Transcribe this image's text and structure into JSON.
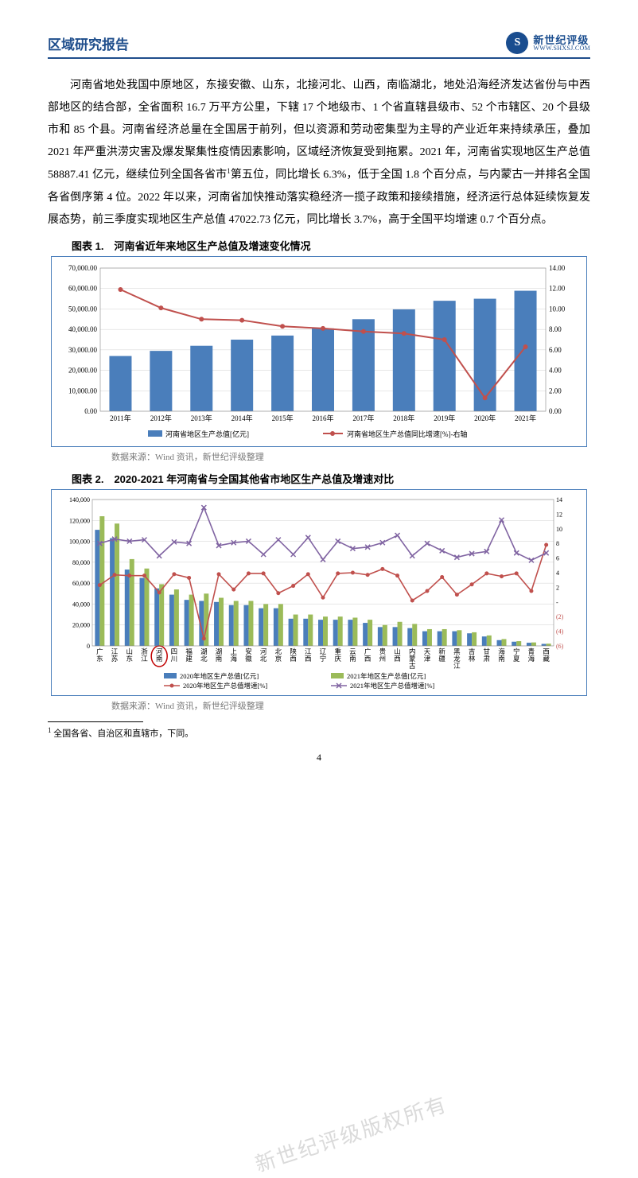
{
  "header": {
    "doc_title": "区域研究报告",
    "logo_cn": "新世纪评级",
    "logo_url": "WWW.SHXSJ.COM",
    "logo_letter": "S"
  },
  "body": {
    "p1": "河南省地处我国中原地区，东接安徽、山东，北接河北、山西，南临湖北，地处沿海经济发达省份与中西部地区的结合部，全省面积 16.7 万平方公里，下辖 17 个地级市、1 个省直辖县级市、52 个市辖区、20 个县级市和 85 个县。河南省经济总量在全国居于前列，但以资源和劳动密集型为主导的产业近年来持续承压，叠加 2021 年严重洪涝灾害及爆发聚集性疫情因素影响，区域经济恢复受到拖累。2021 年，河南省实现地区生产总值 58887.41 亿元，继续位列全国各省市",
    "p1_sup": "1",
    "p1_cont": "第五位，同比增长 6.3%，低于全国 1.8 个百分点，与内蒙古一并排名全国各省倒序第 4 位。2022 年以来，河南省加快推动落实稳经济一揽子政策和接续措施，经济运行总体延续恢复发展态势，前三季度实现地区生产总值 47022.73 亿元，同比增长 3.7%，高于全国平均增速 0.7 个百分点。"
  },
  "fig1": {
    "title": "图表 1.　河南省近年来地区生产总值及增速变化情况",
    "type": "bar+line",
    "categories": [
      "2011年",
      "2012年",
      "2013年",
      "2014年",
      "2015年",
      "2016年",
      "2017年",
      "2018年",
      "2019年",
      "2020年",
      "2021年"
    ],
    "bar_values": [
      27000,
      29500,
      32000,
      35000,
      37000,
      40500,
      45000,
      49800,
      54000,
      55000,
      58900
    ],
    "line_values": [
      11.9,
      10.1,
      9.0,
      8.9,
      8.3,
      8.1,
      7.8,
      7.6,
      7.0,
      1.3,
      6.3
    ],
    "y1_lim": [
      0,
      70000
    ],
    "y1_step": 10000,
    "y2_lim": [
      0,
      14
    ],
    "y2_step": 2,
    "bar_color": "#4a7ebb",
    "line_color": "#c0504d",
    "grid_color": "#d9d9d9",
    "legend_bar": "河南省地区生产总值[亿元]",
    "legend_line": "河南省地区生产总值同比增速[%]-右轴",
    "source": "数据来源：Wind 资讯，新世纪评级整理"
  },
  "fig2": {
    "title": "图表 2.　2020-2021 年河南省与全国其他省市地区生产总值及增速对比",
    "type": "grouped-bar+2lines",
    "categories": [
      "广东",
      "江苏",
      "山东",
      "浙江",
      "河南",
      "四川",
      "福建",
      "湖北",
      "湖南",
      "上海",
      "安徽",
      "河北",
      "北京",
      "陕西",
      "江西",
      "辽宁",
      "重庆",
      "云南",
      "广西",
      "贵州",
      "山西",
      "内蒙古",
      "天津",
      "新疆",
      "黑龙江",
      "吉林",
      "甘肃",
      "海南",
      "宁夏",
      "青海",
      "西藏"
    ],
    "bar2020": [
      111000,
      103000,
      73000,
      65000,
      55000,
      49000,
      44000,
      43000,
      42000,
      39000,
      39000,
      36000,
      36000,
      26000,
      26000,
      25000,
      25000,
      25000,
      22000,
      18000,
      18000,
      17000,
      14000,
      14000,
      14000,
      12000,
      9000,
      5500,
      4000,
      3000,
      1900
    ],
    "bar2021": [
      124000,
      117000,
      83000,
      74000,
      59000,
      54000,
      49000,
      50000,
      46000,
      43000,
      43000,
      40000,
      40000,
      30000,
      30000,
      28000,
      28000,
      27000,
      25000,
      20000,
      23000,
      21000,
      16000,
      16000,
      15000,
      13000,
      10000,
      6500,
      4500,
      3300,
      2100
    ],
    "line2020": [
      2.3,
      3.7,
      3.6,
      3.6,
      1.3,
      3.8,
      3.3,
      -5.0,
      3.8,
      1.7,
      3.9,
      3.9,
      1.2,
      2.2,
      3.8,
      0.6,
      3.9,
      4.0,
      3.7,
      4.5,
      3.6,
      0.2,
      1.5,
      3.4,
      1.0,
      2.4,
      3.9,
      3.5,
      3.9,
      1.5,
      7.8
    ],
    "line2021": [
      8.0,
      8.6,
      8.3,
      8.5,
      6.3,
      8.2,
      8.0,
      12.9,
      7.7,
      8.1,
      8.3,
      6.5,
      8.5,
      6.5,
      8.8,
      5.8,
      8.3,
      7.3,
      7.5,
      8.1,
      9.1,
      6.3,
      8.0,
      7.0,
      6.1,
      6.6,
      6.9,
      11.2,
      6.7,
      5.7,
      6.7
    ],
    "y1_lim": [
      0,
      140000
    ],
    "y1_step": 20000,
    "y2_lim": [
      -6,
      14
    ],
    "y2_step": 2,
    "y2_ticks": [
      14,
      12,
      10,
      8,
      6,
      4,
      2,
      0,
      -2,
      -4,
      -6
    ],
    "y2_tick_labels": [
      "14",
      "12",
      "10",
      "8",
      "6",
      "4",
      "2",
      "-",
      "(2)",
      "(4)",
      "(6)"
    ],
    "bar2020_color": "#4a7ebb",
    "bar2021_color": "#9bbb59",
    "line2020_color": "#c0504d",
    "line2021_color": "#8064a2",
    "grid_color": "#d9d9d9",
    "legend_bar2020": "2020年地区生产总值[亿元]",
    "legend_bar2021": "2021年地区生产总值[亿元]",
    "legend_line2020": "2020年地区生产总值增速[%]",
    "legend_line2021": "2021年地区生产总值增速[%]",
    "source": "数据来源：Wind 资讯，新世纪评级整理",
    "highlight_index": 4
  },
  "footnote": {
    "marker": "1",
    "text": " 全国各省、自治区和直辖市，下同。"
  },
  "page_number": "4",
  "watermark": "新世纪评级版权所有"
}
